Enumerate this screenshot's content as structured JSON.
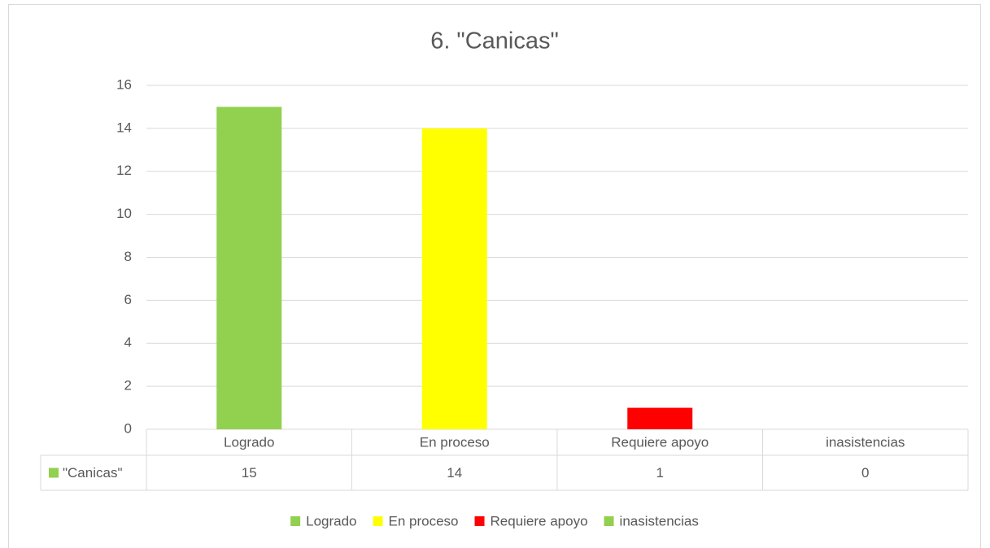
{
  "chart_data": {
    "type": "bar",
    "title": "6. \"Canicas\"",
    "categories": [
      "Logrado",
      "En proceso",
      "Requiere apoyo",
      "inasistencias"
    ],
    "series": [
      {
        "name": "\"Canicas\"",
        "color": "#92d050",
        "values": [
          15,
          14,
          1,
          0
        ],
        "colors": [
          "#92d050",
          "#ffff00",
          "#ff0000",
          "#92d050"
        ]
      }
    ],
    "ylim": [
      0,
      16
    ],
    "yticks": [
      0,
      2,
      4,
      6,
      8,
      10,
      12,
      14,
      16
    ],
    "grid": true,
    "legend": "bottom",
    "data_table": true
  }
}
